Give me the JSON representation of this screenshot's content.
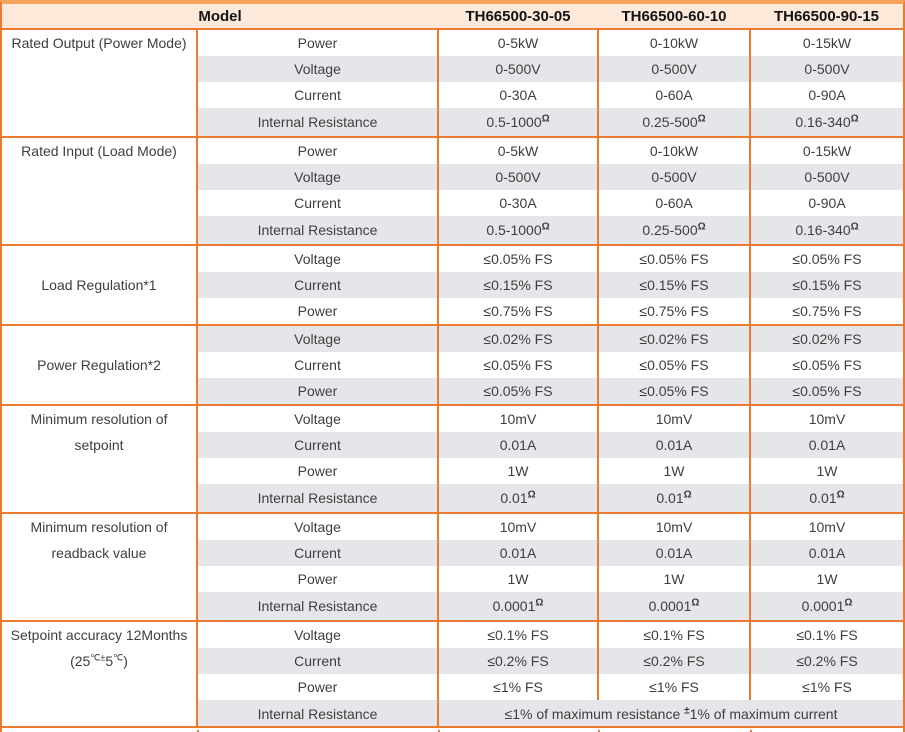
{
  "colors": {
    "accent_orange": "#ED7A2E",
    "border_top_orange": "#F6A35B",
    "header_bg": "#FCE9D9",
    "row_alt_bg": "#E4E6E9",
    "row_bg": "#FFFFFF",
    "text": "#3E3E3E"
  },
  "header": {
    "model_label": "Model",
    "columns": [
      "TH66500-30-05",
      "TH66500-60-10",
      "TH66500-90-15"
    ]
  },
  "sections": [
    {
      "label": "Rated Output (Power Mode)",
      "label_align": "top",
      "rows": [
        {
          "param": "Power",
          "values": [
            "0-5kW",
            "0-10kW",
            "0-15kW"
          ]
        },
        {
          "param": "Voltage",
          "values": [
            "0-500V",
            "0-500V",
            "0-500V"
          ]
        },
        {
          "param": "Current",
          "values": [
            "0-30A",
            "0-60A",
            "0-90A"
          ]
        },
        {
          "param": "Internal Resistance",
          "tall": true,
          "values": [
            [
              {
                "t": "0.5-1000"
              },
              {
                "t": "Ω",
                "sup": true
              }
            ],
            [
              {
                "t": "0.25-500"
              },
              {
                "t": "Ω",
                "sup": true
              }
            ],
            [
              {
                "t": "0.16-340"
              },
              {
                "t": "Ω",
                "sup": true
              }
            ]
          ]
        }
      ]
    },
    {
      "label": "Rated Input (Load Mode)",
      "label_align": "top",
      "rows": [
        {
          "param": "Power",
          "values": [
            "0-5kW",
            "0-10kW",
            "0-15kW"
          ]
        },
        {
          "param": "Voltage",
          "values": [
            "0-500V",
            "0-500V",
            "0-500V"
          ]
        },
        {
          "param": "Current",
          "values": [
            "0-30A",
            "0-60A",
            "0-90A"
          ]
        },
        {
          "param": "Internal Resistance",
          "tall": true,
          "values": [
            [
              {
                "t": "0.5-1000"
              },
              {
                "t": "Ω",
                "sup": true
              }
            ],
            [
              {
                "t": "0.25-500"
              },
              {
                "t": "Ω",
                "sup": true
              }
            ],
            [
              {
                "t": "0.16-340"
              },
              {
                "t": "Ω",
                "sup": true
              }
            ]
          ]
        }
      ]
    },
    {
      "label": "Load Regulation*1",
      "label_align": "middle",
      "rows": [
        {
          "param": "Voltage",
          "values": [
            "≤0.05% FS",
            "≤0.05% FS",
            "≤0.05% FS"
          ]
        },
        {
          "param": "Current",
          "values": [
            "≤0.15% FS",
            "≤0.15% FS",
            "≤0.15% FS"
          ]
        },
        {
          "param": "Power",
          "values": [
            "≤0.75% FS",
            "≤0.75% FS",
            "≤0.75% FS"
          ]
        }
      ]
    },
    {
      "label": "Power Regulation*2",
      "label_align": "middle",
      "rows": [
        {
          "param": "Voltage",
          "values": [
            "≤0.02% FS",
            "≤0.02% FS",
            "≤0.02% FS"
          ]
        },
        {
          "param": "Current",
          "values": [
            "≤0.05% FS",
            "≤0.05% FS",
            "≤0.05% FS"
          ]
        },
        {
          "param": "Power",
          "values": [
            "≤0.05% FS",
            "≤0.05% FS",
            "≤0.05% FS"
          ]
        }
      ]
    },
    {
      "label": "Minimum resolution of setpoint",
      "label_align": "top",
      "rows": [
        {
          "param": "Voltage",
          "values": [
            "10mV",
            "10mV",
            "10mV"
          ]
        },
        {
          "param": "Current",
          "values": [
            "0.01A",
            "0.01A",
            "0.01A"
          ]
        },
        {
          "param": "Power",
          "values": [
            "1W",
            "1W",
            "1W"
          ]
        },
        {
          "param": "Internal Resistance",
          "tall": true,
          "values": [
            [
              {
                "t": "0.01"
              },
              {
                "t": "Ω",
                "sup": true
              }
            ],
            [
              {
                "t": "0.01"
              },
              {
                "t": "Ω",
                "sup": true
              }
            ],
            [
              {
                "t": "0.01"
              },
              {
                "t": "Ω",
                "sup": true
              }
            ]
          ]
        }
      ]
    },
    {
      "label": "Minimum resolution of readback value",
      "label_align": "top",
      "rows": [
        {
          "param": "Voltage",
          "values": [
            "10mV",
            "10mV",
            "10mV"
          ]
        },
        {
          "param": "Current",
          "values": [
            "0.01A",
            "0.01A",
            "0.01A"
          ]
        },
        {
          "param": "Power",
          "values": [
            "1W",
            "1W",
            "1W"
          ]
        },
        {
          "param": "Internal Resistance",
          "tall": true,
          "values": [
            [
              {
                "t": "0.0001"
              },
              {
                "t": "Ω",
                "sup": true
              }
            ],
            [
              {
                "t": "0.0001"
              },
              {
                "t": "Ω",
                "sup": true
              }
            ],
            [
              {
                "t": "0.0001"
              },
              {
                "t": "Ω",
                "sup": true
              }
            ]
          ]
        }
      ]
    },
    {
      "label": {
        "lines": [
          "Setpoint accuracy 12Months",
          [
            {
              "t": "(25"
            },
            {
              "t": "℃±",
              "sup": true,
              "lite": true
            },
            {
              "t": "5"
            },
            {
              "t": "℃",
              "sup": true,
              "lite": true
            },
            {
              "t": ")"
            }
          ]
        ]
      },
      "label_align": "top",
      "rows": [
        {
          "param": "Voltage",
          "values": [
            "≤0.1% FS",
            "≤0.1% FS",
            "≤0.1% FS"
          ]
        },
        {
          "param": "Current",
          "values": [
            "≤0.2% FS",
            "≤0.2% FS",
            "≤0.2% FS"
          ]
        },
        {
          "param": "Power",
          "values": [
            "≤1% FS",
            "≤1% FS",
            "≤1% FS"
          ]
        },
        {
          "param": "Internal Resistance",
          "tall": true,
          "merged_value": [
            {
              "t": "≤1% of maximum resistance "
            },
            {
              "t": "±",
              "sup": true
            },
            {
              "t": "1% of maximum current"
            }
          ]
        }
      ]
    }
  ]
}
